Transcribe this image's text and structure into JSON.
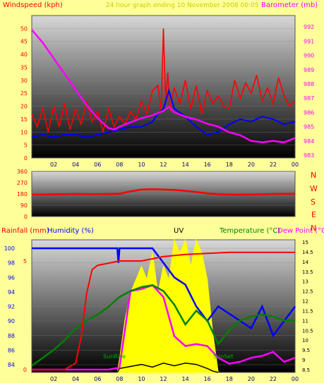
{
  "colors": {
    "page_bg": "#ffff99",
    "wind": "#ff0000",
    "wind_avg": "#0000ff",
    "baro": "#ff00ff",
    "rain": "#ff0000",
    "humidity": "#0000ff",
    "uv": "#ffff00",
    "temp": "#008000",
    "dew": "#ff00ff",
    "solar": "#000000",
    "header": "#cccc00"
  },
  "header": {
    "title": "24 hour graph ending 10 November 2008 00:05",
    "windspeed_label": "Windspeed (kph)",
    "barometer_label": "Barometer (mb)"
  },
  "direction_compass": [
    "N",
    "W",
    "S",
    "E",
    "N"
  ],
  "bottom": {
    "rainfall_label": "Rainfall (mm)",
    "humidity_label": "Humidity (%)",
    "uv_label": "UV",
    "temp_label": "Temperature (°C)",
    "dew_label": "Dew Point (°C)",
    "sunrise_label": "SunRise",
    "sunset_label": "SunSet"
  },
  "chart_data": [
    {
      "id": "wind_baro",
      "type": "line",
      "x_ticks": [
        "02",
        "04",
        "06",
        "08",
        "10",
        "12",
        "14",
        "16",
        "18",
        "20",
        "22",
        "00"
      ],
      "y_left_ticks": [
        0,
        5,
        10,
        15,
        20,
        25,
        30,
        35,
        40,
        45,
        50
      ],
      "y_right_ticks": [
        983,
        984,
        985,
        986,
        987,
        988,
        989,
        990,
        991,
        992
      ],
      "series": [
        {
          "name": "Windspeed",
          "axis": "left",
          "x": [
            0,
            0.5,
            1,
            1.5,
            2,
            2.5,
            3,
            3.5,
            4,
            4.5,
            5,
            5.5,
            6,
            6.5,
            7,
            7.5,
            8,
            8.5,
            9,
            9.5,
            10,
            10.5,
            11,
            11.5,
            11.8,
            12,
            12.2,
            12.4,
            12.6,
            12.8,
            13,
            13.5,
            14,
            14.5,
            15,
            15.5,
            16,
            16.5,
            17,
            17.5,
            18,
            18.5,
            19,
            19.5,
            20,
            20.5,
            21,
            21.5,
            22,
            22.5,
            23,
            23.5,
            24
          ],
          "values": [
            17,
            12,
            19,
            10,
            20,
            12,
            21,
            11,
            19,
            13,
            22,
            14,
            18,
            10,
            19,
            12,
            16,
            13,
            18,
            15,
            22,
            17,
            26,
            28,
            18,
            50,
            22,
            33,
            18,
            24,
            27,
            21,
            30,
            19,
            28,
            17,
            26,
            21,
            24,
            20,
            19,
            30,
            23,
            29,
            25,
            32,
            22,
            27,
            21,
            31,
            24,
            20,
            22
          ]
        },
        {
          "name": "Wind avg",
          "axis": "left",
          "x": [
            0,
            1,
            2,
            3,
            4,
            5,
            6,
            7,
            8,
            9,
            10,
            11,
            11.5,
            12,
            12.5,
            13,
            14,
            15,
            16,
            17,
            18,
            19,
            20,
            21,
            22,
            23,
            24
          ],
          "values": [
            8,
            9,
            8,
            9,
            9,
            8,
            9,
            10,
            11,
            12,
            12,
            14,
            17,
            19,
            26,
            19,
            16,
            12,
            9,
            10,
            13,
            15,
            14,
            16,
            15,
            13,
            14
          ]
        },
        {
          "name": "Barometer",
          "axis": "right",
          "x": [
            0,
            1,
            2,
            3,
            4,
            5,
            6,
            7,
            7.5,
            8,
            9,
            10,
            11,
            12,
            12.5,
            13,
            14,
            15,
            16,
            17,
            18,
            19,
            20,
            21,
            22,
            23,
            24
          ],
          "values": [
            991.8,
            990.9,
            989.8,
            988.7,
            987.6,
            986.5,
            985.6,
            984.9,
            984.8,
            985.0,
            985.3,
            985.6,
            985.8,
            986.1,
            986.4,
            986.0,
            985.7,
            985.5,
            985.2,
            985.0,
            984.6,
            984.4,
            984.0,
            983.9,
            984.0,
            983.9,
            984.2
          ]
        }
      ]
    },
    {
      "id": "direction",
      "type": "line",
      "y_ticks": [
        0,
        90,
        180,
        270,
        360
      ],
      "series": [
        {
          "name": "Wind direction",
          "x": [
            0,
            2,
            4,
            6,
            8,
            9,
            10,
            11,
            12,
            13,
            14,
            15,
            16,
            17,
            18,
            19,
            20,
            22,
            24
          ],
          "values": [
            175,
            177,
            180,
            178,
            182,
            200,
            215,
            218,
            215,
            212,
            205,
            195,
            185,
            178,
            175,
            175,
            176,
            180,
            182
          ]
        }
      ]
    },
    {
      "id": "rain_hum_temp",
      "type": "line",
      "x_ticks": [
        "02",
        "04",
        "06",
        "08",
        "10",
        "12",
        "14",
        "16",
        "18",
        "20",
        "22",
        "00"
      ],
      "y_left_ticks": [
        84,
        86,
        88,
        90,
        92,
        94,
        96,
        98,
        100
      ],
      "rain_ticks": [
        0,
        5
      ],
      "y_right_ticks": [
        8.5,
        9,
        9.5,
        10,
        10.5,
        11,
        11.5,
        12,
        12.5,
        13,
        13.5,
        14,
        14.5,
        15
      ],
      "series": [
        {
          "name": "Rainfall",
          "axis": "rain",
          "x": [
            0,
            2,
            3,
            4,
            4.5,
            5,
            5.5,
            6,
            7,
            8,
            10,
            11,
            12,
            14,
            18,
            24
          ],
          "values": [
            0,
            0,
            0,
            0.3,
            1.5,
            3.5,
            4.6,
            4.8,
            4.9,
            5.0,
            5.0,
            5.1,
            5.2,
            5.3,
            5.4,
            5.4
          ]
        },
        {
          "name": "Humidity",
          "axis": "left",
          "x": [
            0,
            7.8,
            7.9,
            8,
            10,
            11,
            12,
            13,
            14,
            15,
            16,
            17,
            18,
            19,
            20,
            21,
            22,
            23,
            24
          ],
          "values": [
            100,
            100,
            98,
            100,
            100,
            100,
            98,
            96,
            95,
            92,
            90,
            92,
            91,
            90,
            89,
            92,
            88,
            90,
            92
          ]
        },
        {
          "name": "Temperature",
          "axis": "right",
          "x": [
            0,
            1,
            2,
            3,
            4,
            5,
            6,
            7,
            8,
            9,
            10,
            11,
            12,
            13,
            14,
            15,
            16,
            17,
            18,
            19,
            20,
            21,
            22,
            23,
            24
          ],
          "values": [
            8.7,
            9.1,
            9.5,
            10.0,
            10.6,
            11.0,
            11.3,
            11.7,
            12.2,
            12.5,
            12.7,
            12.8,
            12.5,
            11.8,
            10.8,
            11.5,
            11.0,
            9.8,
            10.5,
            11.0,
            11.2,
            11.3,
            11.2,
            11.0,
            11.0
          ]
        },
        {
          "name": "Dew Point",
          "axis": "right",
          "x": [
            0,
            7,
            8,
            9,
            10,
            11,
            12,
            13,
            14,
            15,
            16,
            17,
            18,
            19,
            20,
            21,
            22,
            23,
            24
          ],
          "values": [
            8.5,
            8.5,
            8.6,
            12.5,
            12.6,
            12.8,
            12.2,
            10.2,
            9.7,
            9.8,
            9.7,
            9.1,
            8.8,
            8.9,
            9.1,
            9.2,
            9.4,
            8.9,
            9.1
          ]
        },
        {
          "name": "UV",
          "axis": "uv",
          "x": [
            7.8,
            8,
            8.5,
            9,
            9.5,
            10,
            10.5,
            11,
            11.5,
            12,
            12.5,
            13,
            13.5,
            14,
            14.5,
            15,
            15.5,
            16,
            16.5,
            17
          ],
          "values": [
            0,
            1,
            4,
            6,
            7,
            8,
            7,
            9,
            6,
            8,
            7,
            10,
            9,
            10,
            8,
            10,
            9,
            7,
            3,
            0
          ]
        },
        {
          "name": "Solar",
          "axis": "uv",
          "x": [
            7.8,
            8,
            10,
            11,
            12,
            13,
            14,
            15,
            16,
            16.5,
            17
          ],
          "values": [
            0,
            0.3,
            0.6,
            0.4,
            0.7,
            0.5,
            0.7,
            0.6,
            0.3,
            0.1,
            0
          ]
        }
      ]
    }
  ]
}
